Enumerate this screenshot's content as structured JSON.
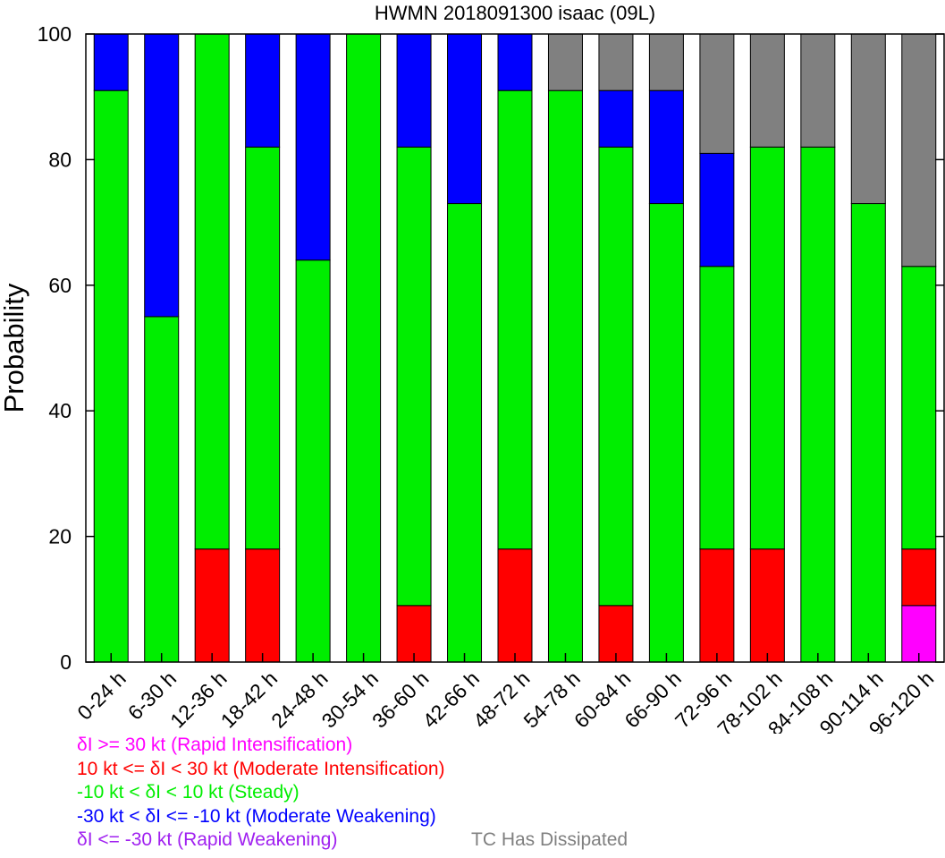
{
  "chart_data": {
    "type": "bar",
    "stacked": true,
    "title": "HWMN 2018091300 isaac (09L)",
    "ylabel": "Probability",
    "xlabel": "",
    "ylim": [
      0,
      100
    ],
    "yticks": [
      0,
      20,
      40,
      60,
      80,
      100
    ],
    "grid": false,
    "categories": [
      "0-24 h",
      "6-30 h",
      "12-36 h",
      "18-42 h",
      "24-48 h",
      "30-54 h",
      "36-60 h",
      "42-66 h",
      "48-72 h",
      "54-78 h",
      "60-84 h",
      "66-90 h",
      "72-96 h",
      "78-102 h",
      "84-108 h",
      "90-114 h",
      "96-120 h"
    ],
    "series": [
      {
        "key": "ri",
        "color": "#ff00ff",
        "values": [
          0,
          0,
          0,
          0,
          0,
          0,
          0,
          0,
          0,
          0,
          0,
          0,
          0,
          0,
          0,
          0,
          9
        ]
      },
      {
        "key": "mi",
        "color": "#ff0000",
        "values": [
          0,
          0,
          18,
          18,
          0,
          0,
          9,
          0,
          18,
          0,
          9,
          0,
          18,
          18,
          0,
          0,
          9
        ]
      },
      {
        "key": "steady",
        "color": "#00ee00",
        "values": [
          91,
          55,
          82,
          64,
          64,
          100,
          73,
          73,
          73,
          91,
          73,
          73,
          45,
          64,
          82,
          73,
          45
        ]
      },
      {
        "key": "mw",
        "color": "#0000ff",
        "values": [
          9,
          45,
          0,
          18,
          36,
          0,
          18,
          27,
          9,
          0,
          9,
          18,
          18,
          0,
          0,
          0,
          0
        ]
      },
      {
        "key": "rw",
        "color": "#a020f0",
        "values": [
          0,
          0,
          0,
          0,
          0,
          0,
          0,
          0,
          0,
          0,
          0,
          0,
          0,
          0,
          0,
          0,
          0
        ]
      },
      {
        "key": "dissipated",
        "color": "#808080",
        "values": [
          0,
          0,
          0,
          0,
          0,
          0,
          0,
          0,
          0,
          9,
          9,
          9,
          19,
          18,
          18,
          27,
          37
        ]
      }
    ],
    "legend": {
      "placement": "bottom-left",
      "entries": [
        {
          "text": "δI >= 30 kt (Rapid Intensification)",
          "color": "#ff00ff"
        },
        {
          "text": "10 kt <= δI < 30 kt (Moderate Intensification)",
          "color": "#ff0000"
        },
        {
          "text": "-10 kt < δI < 10 kt (Steady)",
          "color": "#00ee00"
        },
        {
          "text": "-30 kt < δI <= -10 kt (Moderate Weakening)",
          "color": "#0000ff"
        },
        {
          "text": "δI <= -30 kt (Rapid Weakening)",
          "color": "#a020f0"
        }
      ],
      "dissipated": {
        "text": "TC Has Dissipated",
        "color": "#808080"
      }
    }
  }
}
